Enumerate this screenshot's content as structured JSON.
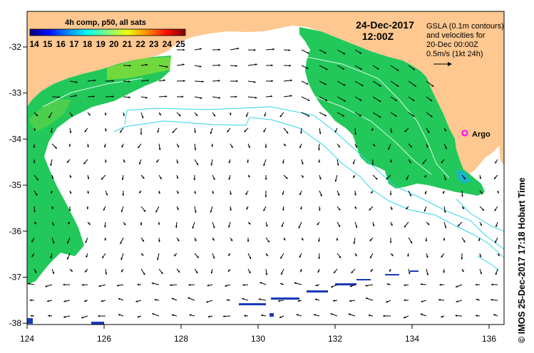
{
  "title": {
    "date": "24-Dec-2017",
    "time": "12:00Z"
  },
  "colorbar": {
    "title": "4h comp, p50, all sats",
    "ticks": [
      "14",
      "15",
      "16",
      "17",
      "18",
      "19",
      "20",
      "21",
      "22",
      "23",
      "24",
      "25"
    ],
    "colors": [
      "#00007f",
      "#0010ff",
      "#0090ff",
      "#10ffef",
      "#80ff80",
      "#efff10",
      "#ff9000",
      "#ff1000",
      "#7f0000"
    ]
  },
  "legend": {
    "lines": [
      "GSLA (0.1m contours)",
      "and velocities for",
      "20-Dec 00:00Z",
      "0.5m/s (1kt 24h)"
    ]
  },
  "marker": {
    "label": "Argo",
    "color": "#ff00ff"
  },
  "axes": {
    "xticks": [
      "124",
      "126",
      "128",
      "130",
      "132",
      "134",
      "136"
    ],
    "yticks": [
      "-32",
      "-33",
      "-34",
      "-35",
      "-36",
      "-37",
      "-38"
    ]
  },
  "credit": "© IMOS 25-Dec-2017 17:18 Hobart Time",
  "colors": {
    "land": "#ffc890",
    "sst_green": "#22c85a",
    "contour": "#30d8e8"
  }
}
